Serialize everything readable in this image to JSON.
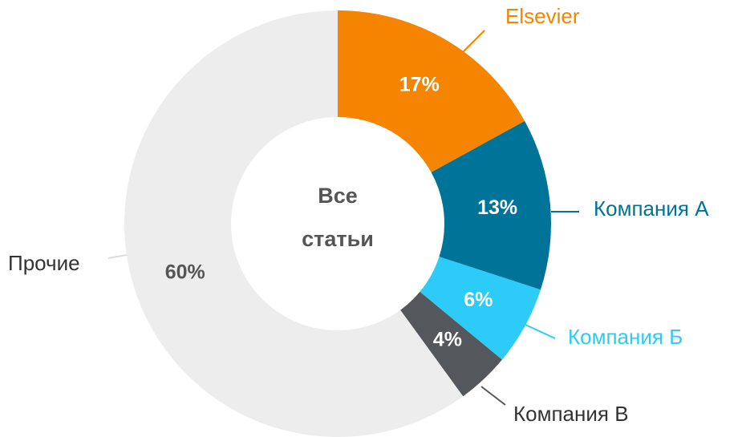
{
  "chart_data": {
    "type": "donut",
    "center_label": [
      "Все",
      "статьи"
    ],
    "categories": [
      "Elsevier",
      "Компания А",
      "Компания Б",
      "Компания В",
      "Прочие"
    ],
    "values": [
      17,
      13,
      6,
      4,
      60
    ],
    "value_labels": [
      "17%",
      "13%",
      "6%",
      "4%",
      "60%"
    ],
    "colors": [
      "#f58400",
      "#007398",
      "#2ccbf8",
      "#54575c",
      "#ededed"
    ]
  }
}
